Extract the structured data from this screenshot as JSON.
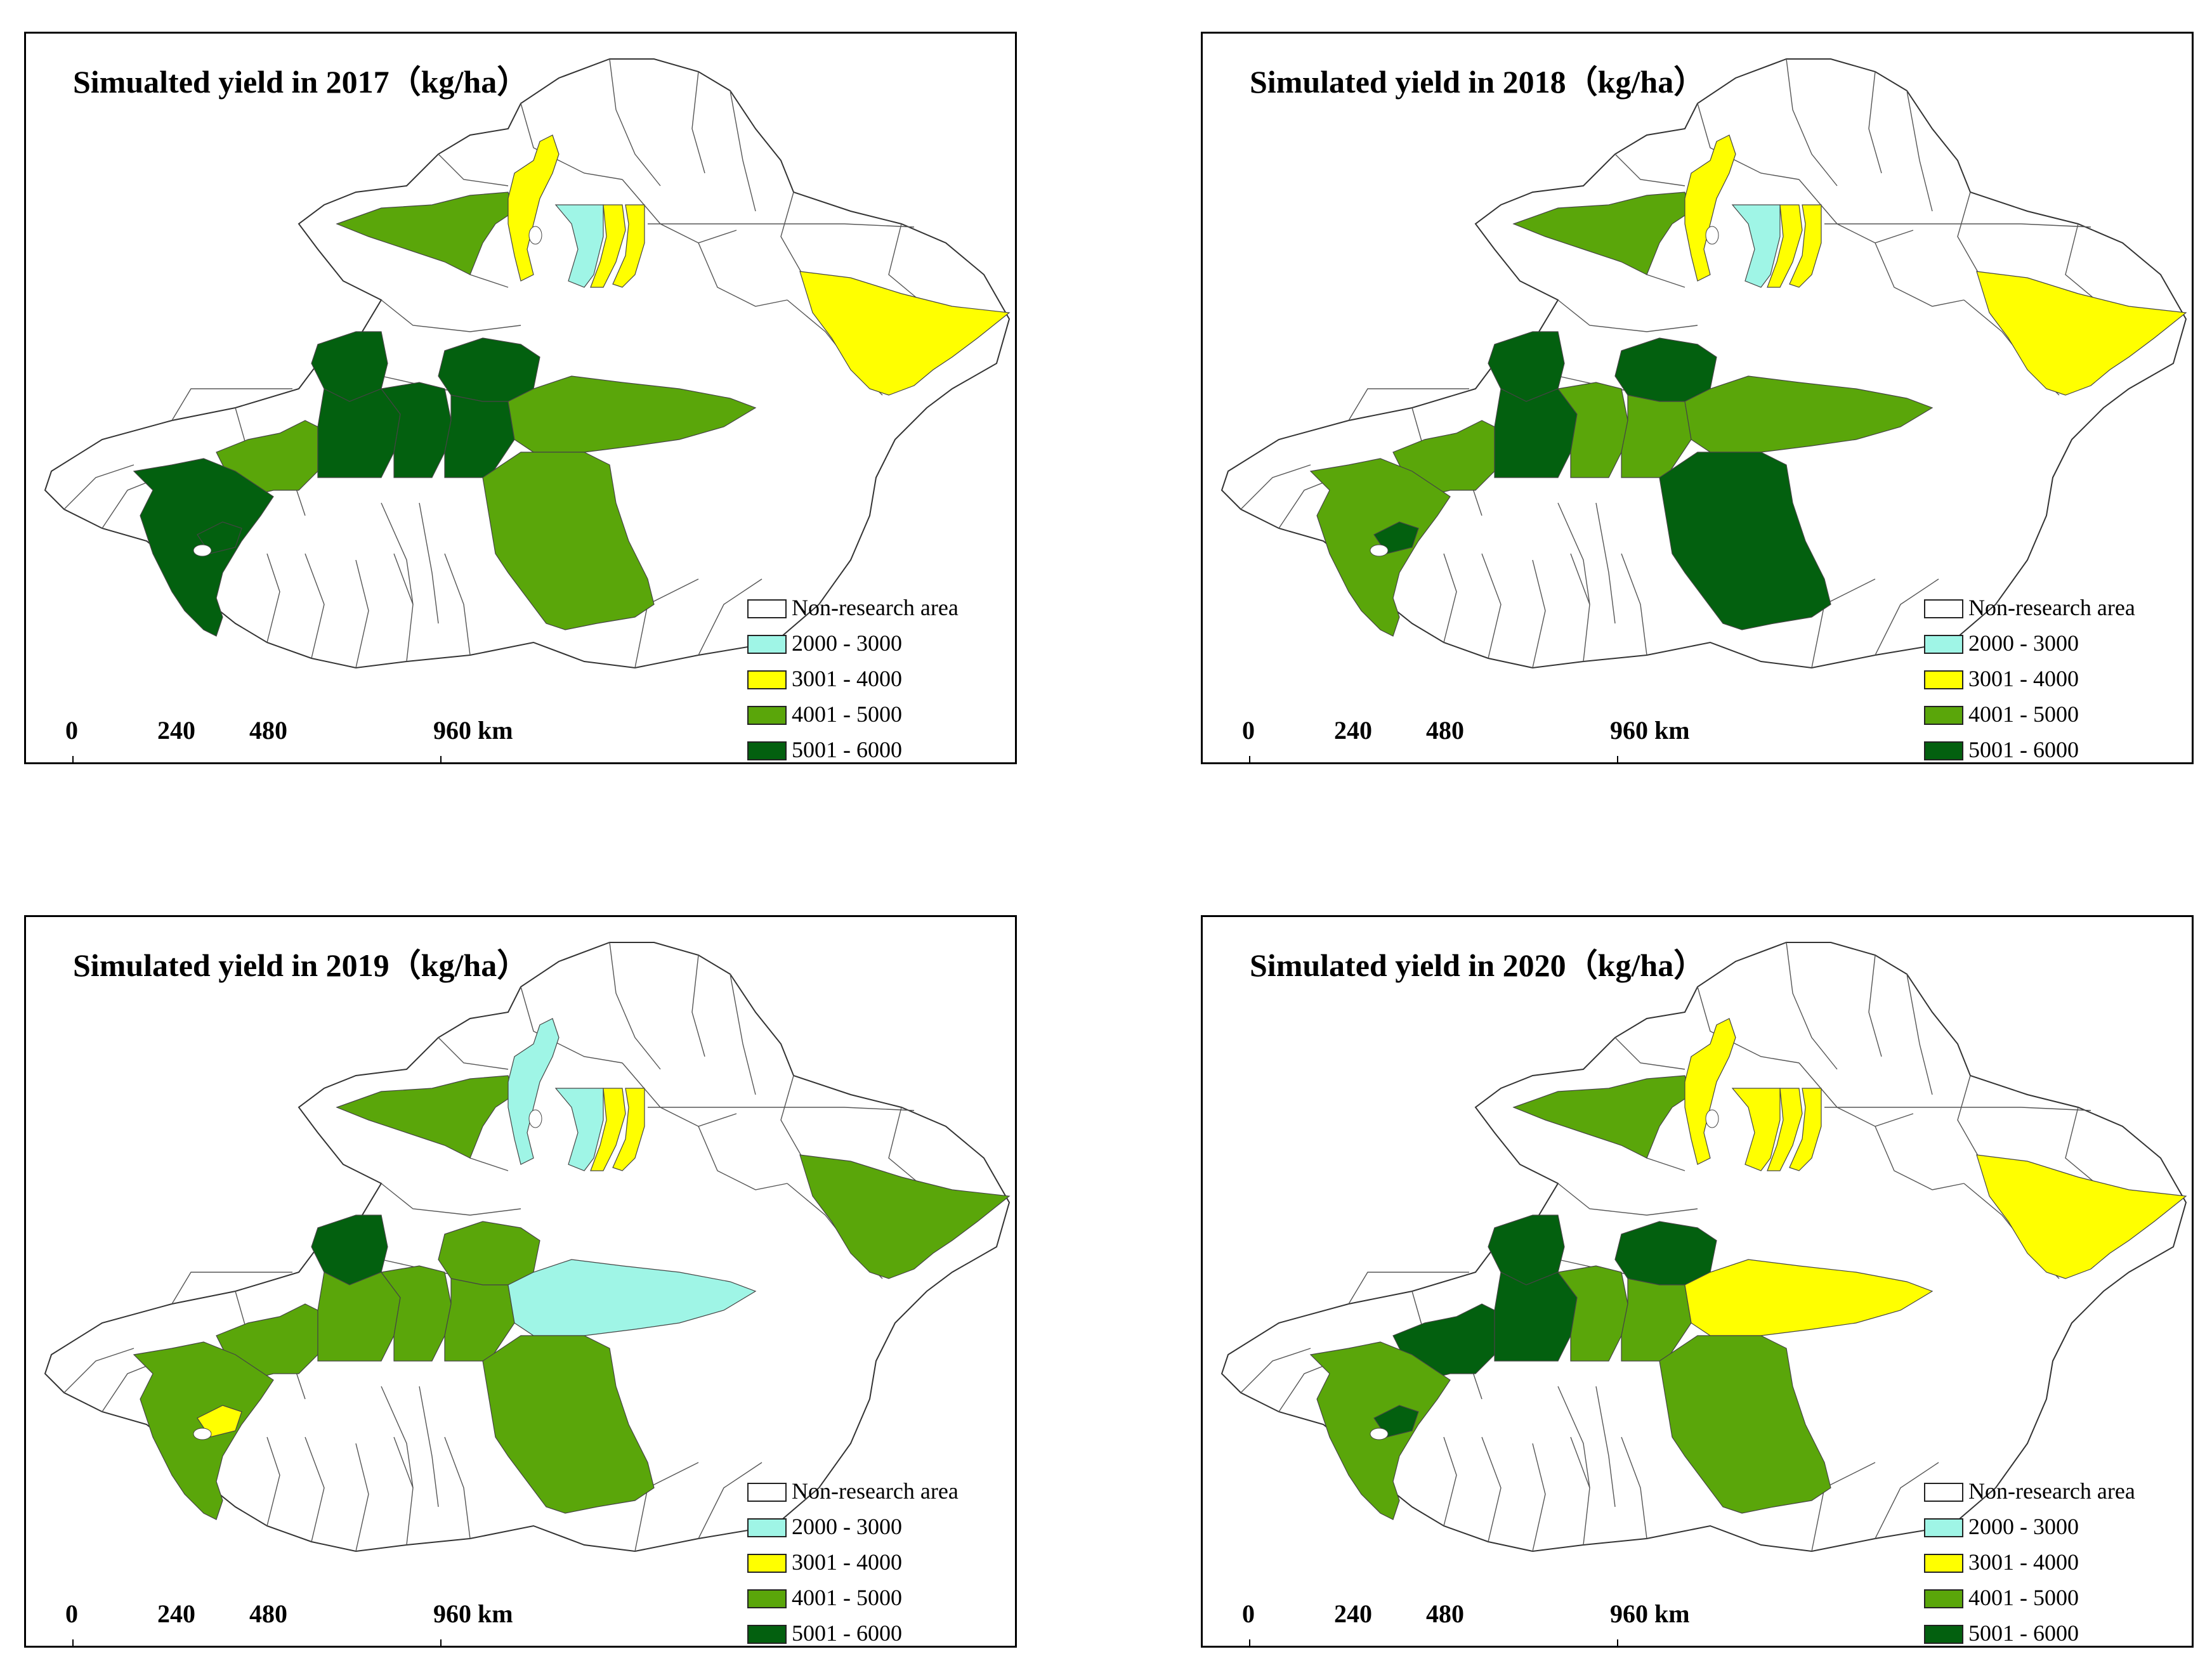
{
  "panels": [
    {
      "title": "Simualted yield in 2017（kg/ha）",
      "regions": {
        "r_north_strip_w": "4001 - 5000",
        "r_north_c1": "3001 - 4000",
        "r_north_c2": "2000 - 3000",
        "r_north_c3": "3001 - 4000",
        "r_north_c4": "3001 - 4000",
        "r_east": "3001 - 4000",
        "r_sw_upper": "4001 - 5000",
        "r_sw_lower": "5001 - 6000",
        "r_cw_a": "5001 - 6000",
        "r_cw_b": "5001 - 6000",
        "r_cw_c": "5001 - 6000",
        "r_cw_d": "5001 - 6000",
        "r_cw_e": "5001 - 6000",
        "r_cband": "4001 - 5000",
        "r_csouth": "4001 - 5000",
        "r_sw_spot": "5001 - 6000"
      }
    },
    {
      "title": "Simulated yield in 2018（kg/ha）",
      "regions": {
        "r_north_strip_w": "4001 - 5000",
        "r_north_c1": "3001 - 4000",
        "r_north_c2": "2000 - 3000",
        "r_north_c3": "3001 - 4000",
        "r_north_c4": "3001 - 4000",
        "r_east": "3001 - 4000",
        "r_sw_upper": "4001 - 5000",
        "r_sw_lower": "4001 - 5000",
        "r_cw_a": "5001 - 6000",
        "r_cw_b": "5001 - 6000",
        "r_cw_c": "4001 - 5000",
        "r_cw_d": "5001 - 6000",
        "r_cw_e": "4001 - 5000",
        "r_cband": "4001 - 5000",
        "r_csouth": "5001 - 6000",
        "r_sw_spot": "5001 - 6000"
      }
    },
    {
      "title": "Simulated yield in 2019（kg/ha）",
      "regions": {
        "r_north_strip_w": "4001 - 5000",
        "r_north_c1": "2000 - 3000",
        "r_north_c2": "2000 - 3000",
        "r_north_c3": "3001 - 4000",
        "r_north_c4": "3001 - 4000",
        "r_east": "4001 - 5000",
        "r_sw_upper": "4001 - 5000",
        "r_sw_lower": "4001 - 5000",
        "r_cw_a": "5001 - 6000",
        "r_cw_b": "4001 - 5000",
        "r_cw_c": "4001 - 5000",
        "r_cw_d": "4001 - 5000",
        "r_cw_e": "4001 - 5000",
        "r_cband": "2000 - 3000",
        "r_csouth": "4001 - 5000",
        "r_sw_spot": "3001 - 4000"
      }
    },
    {
      "title": "Simulated yield in 2020（kg/ha）",
      "regions": {
        "r_north_strip_w": "4001 - 5000",
        "r_north_c1": "3001 - 4000",
        "r_north_c2": "3001 - 4000",
        "r_north_c3": "3001 - 4000",
        "r_north_c4": "3001 - 4000",
        "r_east": "3001 - 4000",
        "r_sw_upper": "5001 - 6000",
        "r_sw_lower": "4001 - 5000",
        "r_cw_a": "5001 - 6000",
        "r_cw_b": "5001 - 6000",
        "r_cw_c": "4001 - 5000",
        "r_cw_d": "5001 - 6000",
        "r_cw_e": "4001 - 5000",
        "r_cband": "3001 - 4000",
        "r_csouth": "4001 - 5000",
        "r_sw_spot": "5001 - 6000"
      }
    }
  ],
  "legend": [
    {
      "label": "Non-research area",
      "color": "#ffffff"
    },
    {
      "label": "2000 - 3000",
      "color": "#9ff5e6"
    },
    {
      "label": "3001 - 4000",
      "color": "#ffff00"
    },
    {
      "label": "4001 - 5000",
      "color": "#5aa60a"
    },
    {
      "label": "5001 - 6000",
      "color": "#03600f"
    }
  ],
  "scale_bar": {
    "labels": [
      "0",
      "240",
      "480",
      "960 km"
    ],
    "values": [
      0,
      240,
      480,
      960
    ]
  }
}
